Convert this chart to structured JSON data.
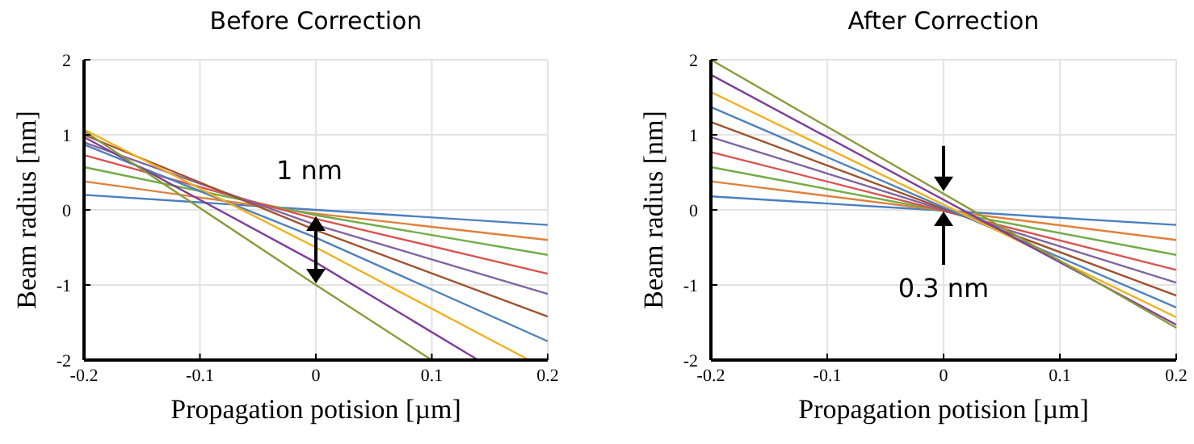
{
  "chart_data": [
    {
      "type": "line",
      "title": "Before Correction",
      "xlabel": "Propagation potision [µm]",
      "ylabel": "Beam radius [nm]",
      "xlim": [
        -0.2,
        0.2
      ],
      "ylim": [
        -2,
        2
      ],
      "xticks": [
        -0.2,
        -0.1,
        0,
        0.1,
        0.2
      ],
      "yticks": [
        -2,
        -1,
        0,
        1,
        2
      ],
      "grid": true,
      "line_style": "solid",
      "marker": "none",
      "series": [
        {
          "color": "#4a7fc0",
          "x": [
            -0.2,
            0,
            0.2
          ],
          "values": [
            0.2,
            0,
            -0.2
          ]
        },
        {
          "color": "#e0803a",
          "x": [
            -0.2,
            0,
            0.2
          ],
          "values": [
            0.38,
            -0.05,
            -0.4
          ]
        },
        {
          "color": "#70ad47",
          "x": [
            -0.2,
            0,
            0.2
          ],
          "values": [
            0.57,
            -0.07,
            -0.6
          ]
        },
        {
          "color": "#d9534f",
          "x": [
            -0.2,
            0,
            0.2
          ],
          "values": [
            0.73,
            -0.12,
            -0.85
          ]
        },
        {
          "color": "#8064a2",
          "x": [
            -0.2,
            0,
            0.2
          ],
          "values": [
            0.9,
            -0.2,
            -1.12
          ]
        },
        {
          "color": "#a0522d",
          "x": [
            -0.2,
            0,
            0.2
          ],
          "values": [
            1.0,
            -0.27,
            -1.42
          ]
        },
        {
          "color": "#4f81bd",
          "x": [
            -0.2,
            0,
            0.2
          ],
          "values": [
            0.87,
            -0.37,
            -1.75
          ]
        },
        {
          "color": "#f0b020",
          "x": [
            -0.2,
            0,
            0.184
          ],
          "values": [
            1.07,
            -0.5,
            -2
          ]
        },
        {
          "color": "#7e3f98",
          "x": [
            -0.2,
            0,
            0.14
          ],
          "values": [
            0.97,
            -0.7,
            -2
          ]
        },
        {
          "color": "#8a9a3a",
          "x": [
            -0.2,
            0,
            0.1
          ],
          "values": [
            1.05,
            -1,
            -2
          ]
        }
      ],
      "annotations": [
        "1 nm"
      ]
    },
    {
      "type": "line",
      "title": "After Correction",
      "xlabel": "Propagation potision [µm]",
      "ylabel": "Beam radius [nm]",
      "xlim": [
        -0.2,
        0.2
      ],
      "ylim": [
        -2,
        2
      ],
      "xticks": [
        -0.2,
        -0.1,
        0,
        0.1,
        0.2
      ],
      "yticks": [
        -2,
        -1,
        0,
        1,
        2
      ],
      "grid": true,
      "line_style": "solid",
      "marker": "none",
      "series": [
        {
          "color": "#4a7fc0",
          "x": [
            -0.2,
            0.2
          ],
          "values": [
            0.18,
            -0.2
          ]
        },
        {
          "color": "#e0803a",
          "x": [
            -0.2,
            0.2
          ],
          "values": [
            0.38,
            -0.4
          ]
        },
        {
          "color": "#70ad47",
          "x": [
            -0.2,
            0.2
          ],
          "values": [
            0.57,
            -0.6
          ]
        },
        {
          "color": "#d9534f",
          "x": [
            -0.2,
            0.2
          ],
          "values": [
            0.77,
            -0.8
          ]
        },
        {
          "color": "#8064a2",
          "x": [
            -0.2,
            0.2
          ],
          "values": [
            0.97,
            -0.97
          ]
        },
        {
          "color": "#a0522d",
          "x": [
            -0.2,
            0.2
          ],
          "values": [
            1.17,
            -1.14
          ]
        },
        {
          "color": "#4f81bd",
          "x": [
            -0.2,
            0.2
          ],
          "values": [
            1.37,
            -1.3
          ]
        },
        {
          "color": "#f0b020",
          "x": [
            -0.2,
            0.2
          ],
          "values": [
            1.57,
            -1.43
          ]
        },
        {
          "color": "#7e3f98",
          "x": [
            -0.2,
            0.2
          ],
          "values": [
            1.8,
            -1.53
          ]
        },
        {
          "color": "#8a9a3a",
          "x": [
            -0.2,
            0.2
          ],
          "values": [
            2.0,
            -1.57
          ]
        }
      ],
      "annotations": [
        {
          "text": "0.3 nm",
          "x": 0,
          "y": 0
        }
      ]
    }
  ]
}
